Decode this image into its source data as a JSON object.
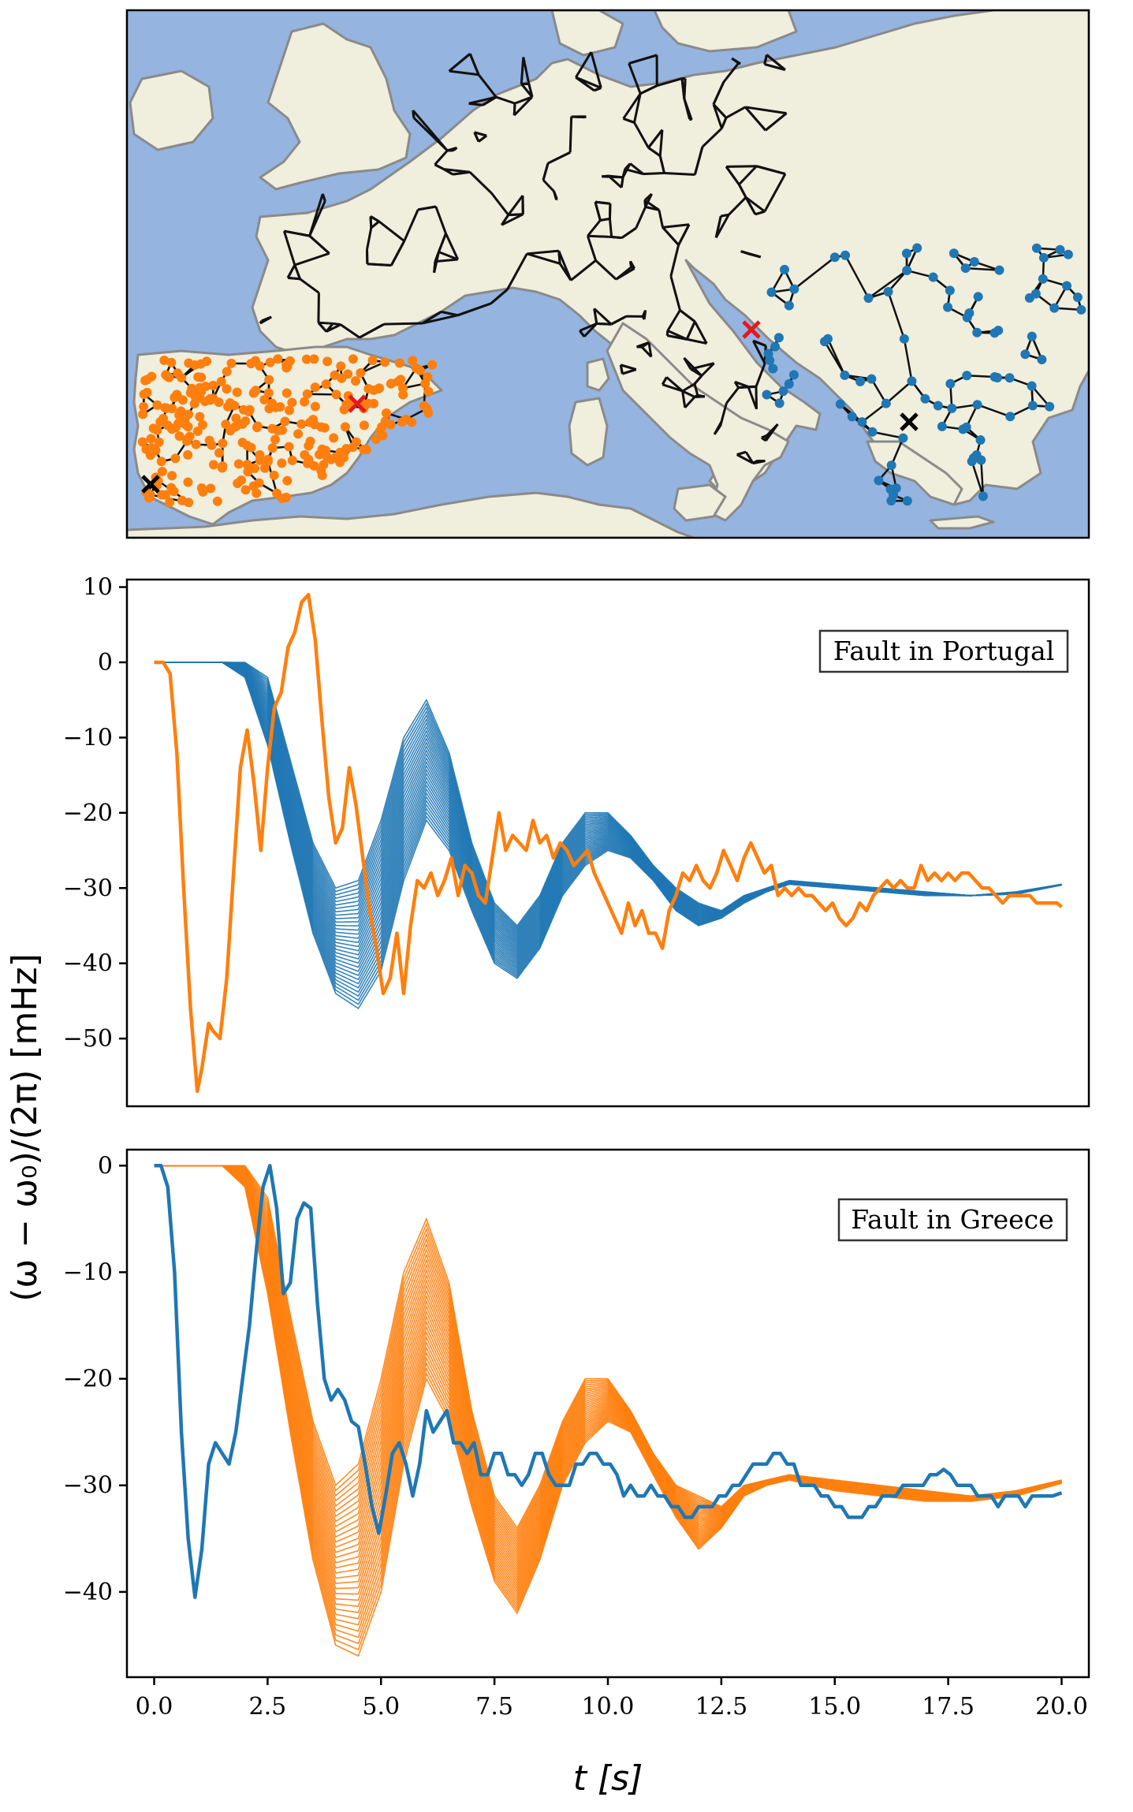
{
  "figure": {
    "ylabel": "(ω − ω₀)/(2π) [mHz]",
    "xlabel": "t [s]"
  },
  "colors": {
    "orange": "#ff7f0e",
    "blue": "#1f77b4",
    "sea": "#95b4df",
    "land": "#f0eedc",
    "border": "#8a8a8a",
    "grid_lines": "#000000",
    "fault_marker": "#e31a1c"
  },
  "map": {
    "description_panel": "europe-grid-map",
    "regions": [
      {
        "name": "Iberia",
        "color": "orange"
      },
      {
        "name": "Balkans",
        "color": "blue"
      },
      {
        "name": "Central Europe",
        "color": "black"
      }
    ]
  },
  "chart_data": [
    {
      "type": "line",
      "panel": "middle",
      "legend": "Fault in Portugal",
      "legend_position": "upper-right",
      "xlim": [
        -0.6,
        20.6
      ],
      "ylim": [
        -59,
        11
      ],
      "yticks": [
        10,
        0,
        -10,
        -20,
        -30,
        -40,
        -50
      ],
      "ytick_labels": [
        "10",
        "0",
        "−10",
        "−20",
        "−30",
        "−40",
        "−50"
      ],
      "xticks_visible": false,
      "series": [
        {
          "name": "Iberia (orange)",
          "color": "orange",
          "x": [
            0,
            0.2,
            0.35,
            0.5,
            0.65,
            0.8,
            0.95,
            1.05,
            1.2,
            1.3,
            1.45,
            1.6,
            1.75,
            1.9,
            2.05,
            2.2,
            2.35,
            2.5,
            2.65,
            2.8,
            2.95,
            3.1,
            3.25,
            3.4,
            3.55,
            3.7,
            3.85,
            4.0,
            4.15,
            4.3,
            4.45,
            4.6,
            4.75,
            4.9,
            5.05,
            5.2,
            5.35,
            5.5,
            5.65,
            5.8,
            5.95,
            6.1,
            6.25,
            6.4,
            6.55,
            6.7,
            6.85,
            7.0,
            7.15,
            7.3,
            7.45,
            7.6,
            7.75,
            7.9,
            8.05,
            8.2,
            8.35,
            8.5,
            8.65,
            8.8,
            8.95,
            9.1,
            9.25,
            9.4,
            9.55,
            9.7,
            9.85,
            10.0,
            10.15,
            10.3,
            10.45,
            10.6,
            10.75,
            10.9,
            11.05,
            11.2,
            11.35,
            11.5,
            11.65,
            11.8,
            11.95,
            12.1,
            12.25,
            12.4,
            12.55,
            12.7,
            12.85,
            13.0,
            13.15,
            13.3,
            13.45,
            13.6,
            13.75,
            13.9,
            14.05,
            14.2,
            14.35,
            14.5,
            14.65,
            14.8,
            14.95,
            15.1,
            15.25,
            15.4,
            15.55,
            15.7,
            15.85,
            16.0,
            16.15,
            16.3,
            16.45,
            16.6,
            16.75,
            16.9,
            17.05,
            17.2,
            17.35,
            17.5,
            17.65,
            17.8,
            17.95,
            18.1,
            18.25,
            18.4,
            18.55,
            18.7,
            18.85,
            19.0,
            19.15,
            19.3,
            19.45,
            19.6,
            19.75,
            19.9,
            20.0
          ],
          "y": [
            0,
            0,
            -1.5,
            -12,
            -30,
            -46,
            -57,
            -54,
            -48,
            -49,
            -50,
            -42,
            -28,
            -14,
            -9,
            -16,
            -25,
            -14,
            -6,
            -4,
            2,
            4,
            8,
            9,
            3,
            -8,
            -18,
            -24,
            -22,
            -14,
            -19,
            -26,
            -33,
            -38,
            -44,
            -42,
            -36,
            -44,
            -35,
            -29,
            -30,
            -28,
            -31,
            -29,
            -26,
            -31,
            -27,
            -28,
            -31,
            -32,
            -26,
            -20,
            -25,
            -23,
            -24,
            -25,
            -21,
            -24,
            -23,
            -26,
            -24,
            -25,
            -27,
            -26,
            -25,
            -28,
            -30,
            -32,
            -34,
            -36,
            -32,
            -35,
            -33,
            -36,
            -36,
            -38,
            -33,
            -31,
            -28,
            -29,
            -27,
            -29,
            -30,
            -28,
            -25,
            -27,
            -29,
            -26,
            -24,
            -26,
            -28,
            -27,
            -31,
            -30,
            -31,
            -30,
            -31,
            -31,
            -32,
            -33,
            -32,
            -34,
            -35,
            -34,
            -32,
            -33,
            -31,
            -30,
            -29,
            -30,
            -29,
            -30,
            -30,
            -27,
            -29,
            -28,
            -29,
            -28,
            -29,
            -28,
            -28,
            -29,
            -30,
            -30,
            -31,
            -32,
            -31,
            -31,
            -31,
            -31,
            -32,
            -32,
            -32,
            -32,
            -32.5
          ]
        },
        {
          "name": "Balkans band (blue)",
          "color": "blue",
          "band": true,
          "n_lines": 32,
          "band_description": "damped oscillation band; upper and lower envelopes",
          "x": [
            0,
            1.0,
            1.5,
            2.0,
            2.5,
            3.0,
            3.5,
            4.0,
            4.5,
            5.0,
            5.5,
            6.0,
            6.5,
            7.0,
            7.5,
            8.0,
            8.5,
            9.0,
            9.5,
            10.0,
            10.5,
            11.0,
            11.5,
            12.0,
            12.5,
            13.0,
            13.5,
            14.0,
            15.0,
            16.0,
            17.0,
            18.0,
            19.0,
            20.0
          ],
          "y_upper": [
            0,
            0,
            0,
            0,
            -2,
            -13,
            -24,
            -30,
            -29,
            -21,
            -10,
            -5,
            -12,
            -24,
            -32,
            -35,
            -31,
            -24,
            -20,
            -20,
            -23,
            -27,
            -30,
            -32,
            -33,
            -31,
            -30,
            -29,
            -29.5,
            -30,
            -30.5,
            -31,
            -30.5,
            -29.5
          ],
          "y_lower": [
            0,
            0,
            0,
            -2,
            -11,
            -24,
            -36,
            -44,
            -46,
            -41,
            -29,
            -21,
            -25,
            -33,
            -40,
            -42,
            -38,
            -31,
            -27,
            -25,
            -26,
            -29,
            -33,
            -35,
            -34,
            -32,
            -30.5,
            -29.5,
            -30,
            -30.5,
            -31,
            -31,
            -30.8,
            -29.6
          ]
        }
      ]
    },
    {
      "type": "line",
      "panel": "bottom",
      "legend": "Fault in Greece",
      "legend_position": "upper-right",
      "xlim": [
        -0.6,
        20.6
      ],
      "ylim": [
        -48,
        1.5
      ],
      "yticks": [
        0,
        -10,
        -20,
        -30,
        -40
      ],
      "ytick_labels": [
        "0",
        "−10",
        "−20",
        "−30",
        "−40"
      ],
      "xticks": [
        0,
        2.5,
        5,
        7.5,
        10,
        12.5,
        15,
        17.5,
        20
      ],
      "xtick_labels": [
        "0.0",
        "2.5",
        "5.0",
        "7.5",
        "10.0",
        "12.5",
        "15.0",
        "17.5",
        "20.0"
      ],
      "series": [
        {
          "name": "Balkans (blue)",
          "color": "blue",
          "x": [
            0,
            0.15,
            0.3,
            0.45,
            0.6,
            0.75,
            0.9,
            1.05,
            1.2,
            1.35,
            1.5,
            1.65,
            1.8,
            1.95,
            2.1,
            2.25,
            2.4,
            2.55,
            2.7,
            2.85,
            3.0,
            3.15,
            3.3,
            3.45,
            3.6,
            3.75,
            3.9,
            4.05,
            4.2,
            4.35,
            4.5,
            4.65,
            4.8,
            4.95,
            5.1,
            5.25,
            5.4,
            5.55,
            5.7,
            5.85,
            6.0,
            6.15,
            6.3,
            6.45,
            6.6,
            6.75,
            6.9,
            7.05,
            7.2,
            7.35,
            7.5,
            7.65,
            7.8,
            7.95,
            8.1,
            8.25,
            8.4,
            8.55,
            8.7,
            8.85,
            9.0,
            9.15,
            9.3,
            9.45,
            9.6,
            9.75,
            9.9,
            10.05,
            10.2,
            10.35,
            10.5,
            10.65,
            10.8,
            10.95,
            11.1,
            11.25,
            11.4,
            11.55,
            11.7,
            11.85,
            12.0,
            12.15,
            12.3,
            12.45,
            12.6,
            12.75,
            12.9,
            13.05,
            13.2,
            13.35,
            13.5,
            13.65,
            13.8,
            13.95,
            14.1,
            14.25,
            14.4,
            14.55,
            14.7,
            14.85,
            15.0,
            15.15,
            15.3,
            15.45,
            15.6,
            15.75,
            15.9,
            16.05,
            16.2,
            16.35,
            16.5,
            16.65,
            16.8,
            16.95,
            17.1,
            17.25,
            17.4,
            17.55,
            17.7,
            17.85,
            18.0,
            18.15,
            18.3,
            18.45,
            18.6,
            18.75,
            18.9,
            19.05,
            19.2,
            19.35,
            19.5,
            19.65,
            19.8,
            20.0
          ],
          "y": [
            0,
            0,
            -2,
            -10,
            -25,
            -35,
            -40.5,
            -36,
            -28,
            -26,
            -27,
            -28,
            -25,
            -20,
            -15,
            -8,
            -2,
            0,
            -4,
            -12,
            -11,
            -5,
            -3.5,
            -4,
            -13,
            -20,
            -22,
            -21,
            -22,
            -24,
            -24.5,
            -28,
            -32,
            -34.5,
            -31,
            -27,
            -26,
            -28,
            -31,
            -28,
            -23,
            -25,
            -24,
            -23,
            -26,
            -26,
            -27,
            -26,
            -29,
            -29,
            -27,
            -27,
            -29,
            -29,
            -30,
            -29,
            -27,
            -27,
            -29,
            -30,
            -30,
            -30,
            -28,
            -28,
            -27,
            -27,
            -28,
            -28,
            -29,
            -31,
            -30,
            -31,
            -31,
            -30,
            -31,
            -31,
            -32,
            -32,
            -33,
            -33,
            -32,
            -32,
            -32,
            -31,
            -31,
            -30,
            -30,
            -29,
            -28,
            -28,
            -28,
            -27,
            -27,
            -28,
            -28,
            -30,
            -30,
            -30,
            -31,
            -31,
            -32,
            -32,
            -33,
            -33,
            -33,
            -32,
            -32,
            -31,
            -31,
            -31,
            -30,
            -30,
            -30,
            -30,
            -29,
            -29,
            -28.5,
            -29,
            -30,
            -30,
            -30,
            -31,
            -31,
            -31,
            -32,
            -31,
            -31,
            -31,
            -32,
            -31,
            -31,
            -31,
            -31,
            -30.7
          ]
        },
        {
          "name": "Iberia band (orange)",
          "color": "orange",
          "band": true,
          "n_lines": 32,
          "band_description": "damped oscillation band; upper and lower envelopes",
          "x": [
            0,
            1.0,
            1.5,
            2.0,
            2.5,
            3.0,
            3.5,
            4.0,
            4.5,
            5.0,
            5.5,
            6.0,
            6.5,
            7.0,
            7.5,
            8.0,
            8.5,
            9.0,
            9.5,
            10.0,
            10.5,
            11.0,
            11.5,
            12.0,
            12.5,
            13.0,
            13.5,
            14.0,
            15.0,
            16.0,
            17.0,
            18.0,
            19.0,
            20.0
          ],
          "y_upper": [
            0,
            0,
            0,
            0,
            -3,
            -14,
            -24,
            -30,
            -28,
            -20,
            -10,
            -5,
            -11,
            -23,
            -31,
            -34,
            -30,
            -24,
            -20,
            -20,
            -23,
            -27,
            -30,
            -31,
            -32,
            -30,
            -29.5,
            -29,
            -29.5,
            -30,
            -30.5,
            -31,
            -30.5,
            -29.5
          ],
          "y_lower": [
            0,
            0,
            0,
            -2,
            -12,
            -25,
            -37,
            -45,
            -46,
            -40,
            -28,
            -20,
            -24,
            -32,
            -39,
            -42,
            -37,
            -30,
            -26,
            -24,
            -25,
            -29,
            -33,
            -36,
            -34,
            -31,
            -30,
            -29.5,
            -30.5,
            -31,
            -31.5,
            -31.5,
            -31,
            -29.8
          ]
        }
      ]
    }
  ]
}
